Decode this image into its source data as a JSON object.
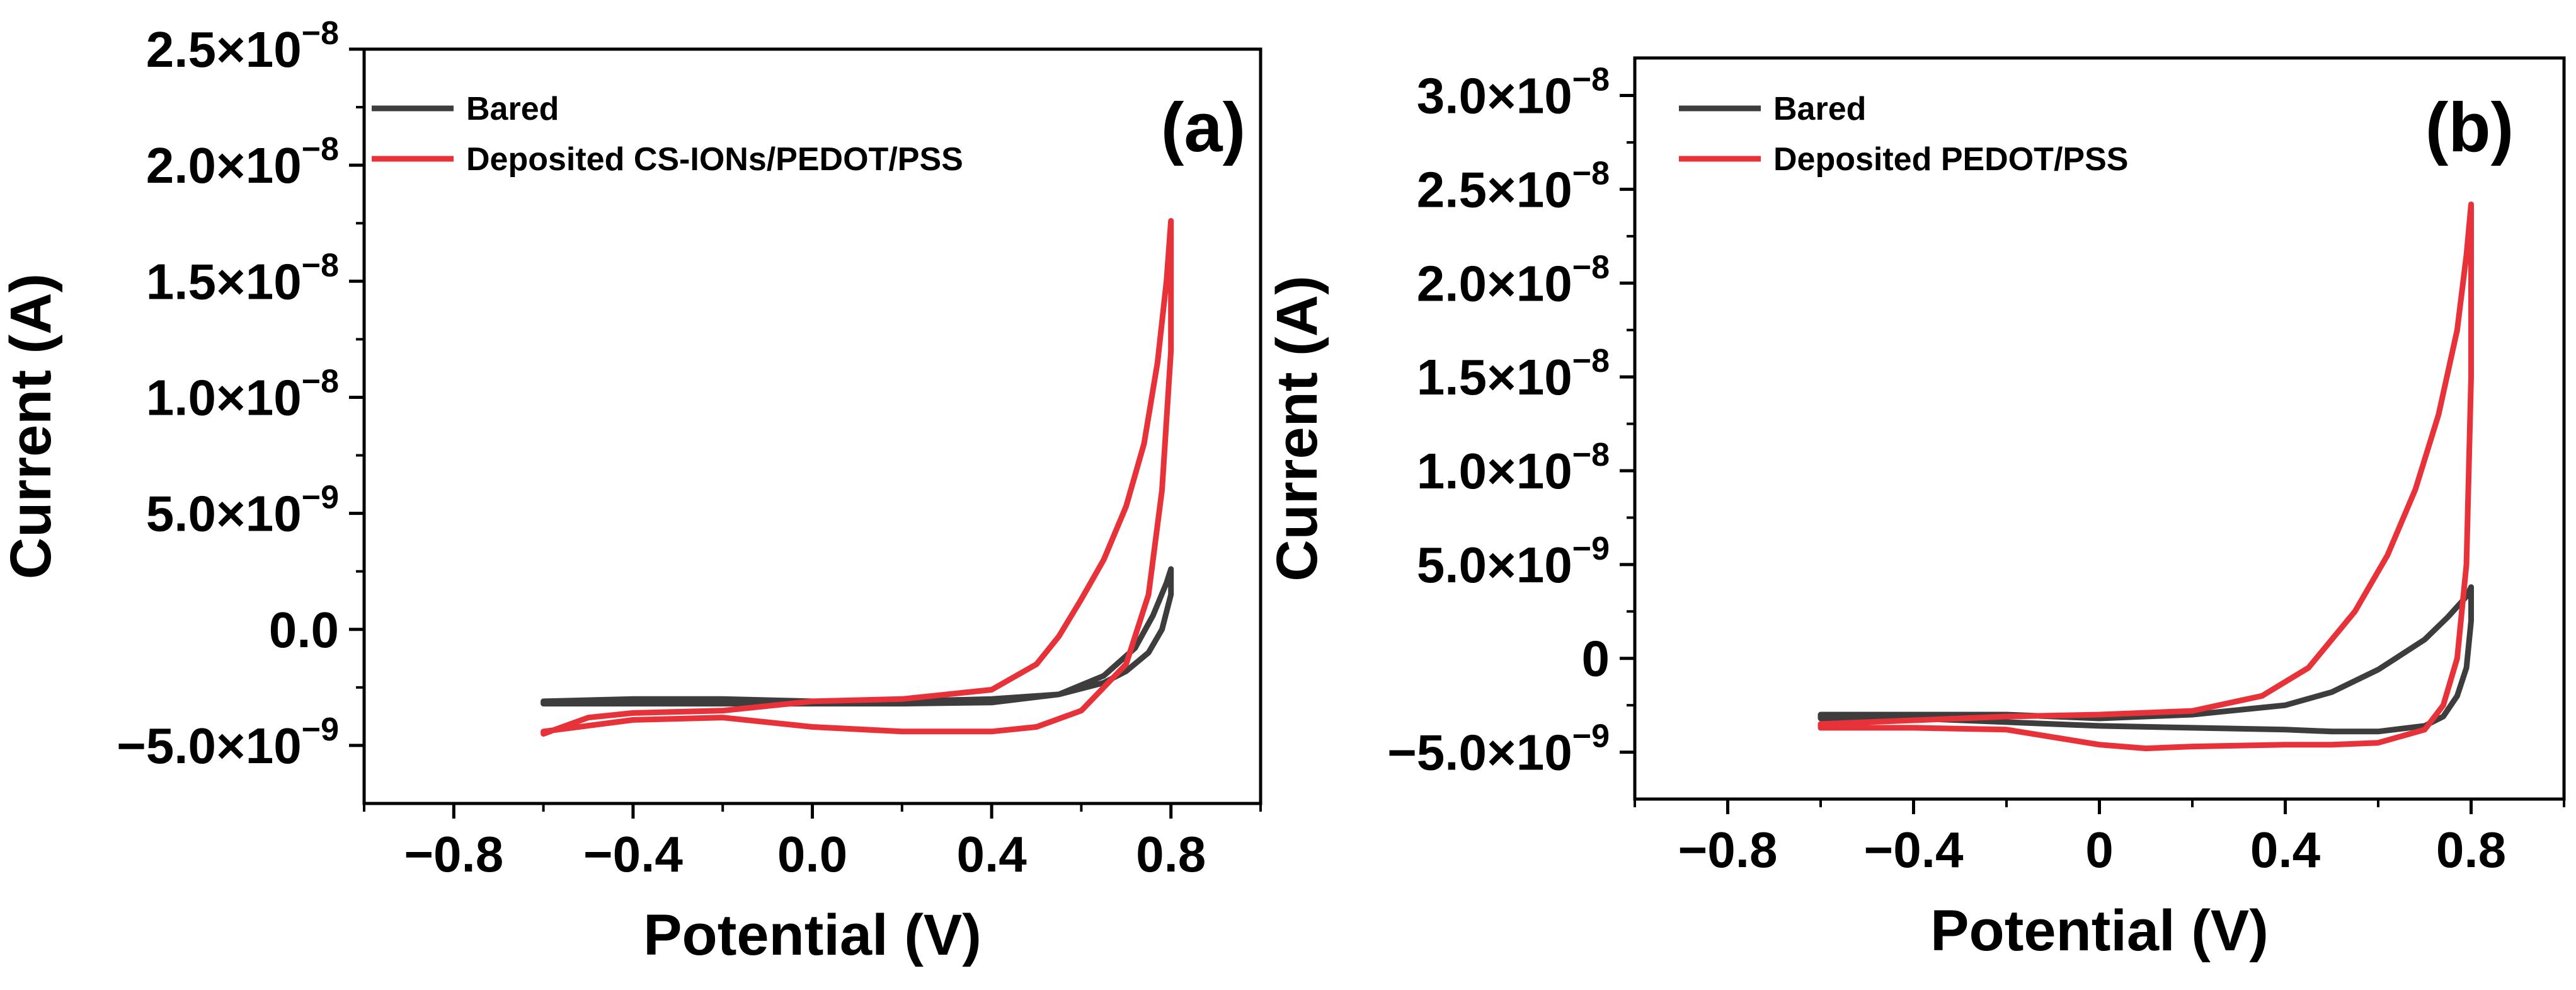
{
  "chart_data": [
    {
      "type": "line",
      "panel_label": "(a)",
      "xlabel": "Potential (V)",
      "ylabel": "Current (A)",
      "xlim": [
        -1.0,
        1.0
      ],
      "ylim": [
        -7.5e-09,
        2.5e-08
      ],
      "xticks": [
        {
          "value": -0.8,
          "label": "−0.8"
        },
        {
          "value": -0.4,
          "label": "−0.4"
        },
        {
          "value": 0.0,
          "label": "0.0"
        },
        {
          "value": 0.4,
          "label": "0.4"
        },
        {
          "value": 0.8,
          "label": "0.8"
        }
      ],
      "yticks": [
        {
          "value": -5e-09,
          "mant": "−5.0×10",
          "exp": "−9"
        },
        {
          "value": 0,
          "mant": "0.0",
          "exp": ""
        },
        {
          "value": 5e-09,
          "mant": "5.0×10",
          "exp": "−9"
        },
        {
          "value": 1e-08,
          "mant": "1.0×10",
          "exp": "−8"
        },
        {
          "value": 1.5e-08,
          "mant": "1.5×10",
          "exp": "−8"
        },
        {
          "value": 2e-08,
          "mant": "2.0×10",
          "exp": "−8"
        },
        {
          "value": 2.5e-08,
          "mant": "2.5×10",
          "exp": "−8"
        }
      ],
      "series": [
        {
          "name": "Bared",
          "color": "#3d3d3d",
          "x": [
            0.0,
            0.2,
            0.4,
            0.55,
            0.65,
            0.72,
            0.76,
            0.79,
            0.8,
            0.8,
            0.78,
            0.75,
            0.7,
            0.65,
            0.55,
            0.4,
            0.2,
            0.0,
            -0.2,
            -0.4,
            -0.6,
            -0.6,
            -0.4,
            -0.2,
            0.0
          ],
          "y": [
            -3.2e-09,
            -3.2e-09,
            -3.15e-09,
            -2.8e-09,
            -2e-09,
            -8e-10,
            6e-10,
            2e-09,
            2.6e-09,
            1.5e-09,
            0.0,
            -1e-09,
            -1.8e-09,
            -2.3e-09,
            -2.8e-09,
            -3e-09,
            -3.1e-09,
            -3.2e-09,
            -3.2e-09,
            -3.2e-09,
            -3.2e-09,
            -3.1e-09,
            -3e-09,
            -3e-09,
            -3.1e-09
          ]
        },
        {
          "name": "Deposited CS-IONs/PEDOT/PSS",
          "color": "#e8323a",
          "x": [
            0.0,
            0.2,
            0.4,
            0.5,
            0.55,
            0.6,
            0.65,
            0.7,
            0.74,
            0.77,
            0.79,
            0.8,
            0.8,
            0.78,
            0.75,
            0.7,
            0.6,
            0.5,
            0.4,
            0.2,
            0.0,
            -0.2,
            -0.4,
            -0.6,
            -0.6,
            -0.5,
            -0.4,
            -0.2,
            0.0
          ],
          "y": [
            -3.1e-09,
            -3e-09,
            -2.6e-09,
            -1.5e-09,
            -3e-10,
            1.3e-09,
            3e-09,
            5.3e-09,
            8e-09,
            1.15e-08,
            1.5e-08,
            1.76e-08,
            1.2e-08,
            6e-09,
            1.5e-09,
            -1.5e-09,
            -3.5e-09,
            -4.2e-09,
            -4.4e-09,
            -4.4e-09,
            -4.2e-09,
            -3.8e-09,
            -3.9e-09,
            -4.4e-09,
            -4.5e-09,
            -3.8e-09,
            -3.6e-09,
            -3.5e-09,
            -3.1e-09
          ]
        }
      ]
    },
    {
      "type": "line",
      "panel_label": "(b)",
      "xlabel": "Potential (V)",
      "ylabel": "Current (A)",
      "xlim": [
        -1.0,
        1.0
      ],
      "ylim": [
        -7.5e-09,
        3.2e-08
      ],
      "xticks": [
        {
          "value": -0.8,
          "label": "−0.8"
        },
        {
          "value": -0.4,
          "label": "−0.4"
        },
        {
          "value": 0.0,
          "label": "0"
        },
        {
          "value": 0.4,
          "label": "0.4"
        },
        {
          "value": 0.8,
          "label": "0.8"
        }
      ],
      "yticks": [
        {
          "value": -5e-09,
          "mant": "−5.0×10",
          "exp": "−9"
        },
        {
          "value": 0,
          "mant": "0",
          "exp": ""
        },
        {
          "value": 5e-09,
          "mant": "5.0×10",
          "exp": "−9"
        },
        {
          "value": 1e-08,
          "mant": "1.0×10",
          "exp": "−8"
        },
        {
          "value": 1.5e-08,
          "mant": "1.5×10",
          "exp": "−8"
        },
        {
          "value": 2e-08,
          "mant": "2.0×10",
          "exp": "−8"
        },
        {
          "value": 2.5e-08,
          "mant": "2.5×10",
          "exp": "−8"
        },
        {
          "value": 3e-08,
          "mant": "3.0×10",
          "exp": "−8"
        }
      ],
      "series": [
        {
          "name": "Bared",
          "color": "#3d3d3d",
          "x": [
            0.0,
            0.2,
            0.4,
            0.5,
            0.6,
            0.7,
            0.75,
            0.79,
            0.8,
            0.8,
            0.79,
            0.77,
            0.74,
            0.7,
            0.6,
            0.5,
            0.4,
            0.2,
            0.0,
            -0.2,
            -0.4,
            -0.6,
            -0.6,
            -0.4,
            -0.2,
            0.0
          ],
          "y": [
            -3.2e-09,
            -3e-09,
            -2.5e-09,
            -1.8e-09,
            -6e-10,
            1e-09,
            2.2e-09,
            3.3e-09,
            3.8e-09,
            2e-09,
            -5e-10,
            -2e-09,
            -3.1e-09,
            -3.6e-09,
            -3.9e-09,
            -3.9e-09,
            -3.8e-09,
            -3.7e-09,
            -3.6e-09,
            -3.4e-09,
            -3.2e-09,
            -3.2e-09,
            -3e-09,
            -3e-09,
            -3e-09,
            -3.2e-09
          ]
        },
        {
          "name": "Deposited PEDOT/PSS",
          "color": "#e8323a",
          "x": [
            0.0,
            0.2,
            0.35,
            0.45,
            0.55,
            0.62,
            0.68,
            0.73,
            0.77,
            0.79,
            0.8,
            0.8,
            0.79,
            0.77,
            0.74,
            0.7,
            0.6,
            0.5,
            0.4,
            0.2,
            0.1,
            0.0,
            -0.2,
            -0.4,
            -0.6,
            -0.6,
            -0.4,
            -0.2,
            0.0
          ],
          "y": [
            -3e-09,
            -2.8e-09,
            -2e-09,
            -5e-10,
            2.5e-09,
            5.5e-09,
            9e-09,
            1.3e-08,
            1.75e-08,
            2.15e-08,
            2.42e-08,
            1.5e-08,
            5e-09,
            0.0,
            -2.5e-09,
            -3.8e-09,
            -4.5e-09,
            -4.6e-09,
            -4.6e-09,
            -4.7e-09,
            -4.8e-09,
            -4.6e-09,
            -3.8e-09,
            -3.7e-09,
            -3.7e-09,
            -3.5e-09,
            -3.3e-09,
            -3.1e-09,
            -3e-09
          ]
        }
      ]
    }
  ]
}
